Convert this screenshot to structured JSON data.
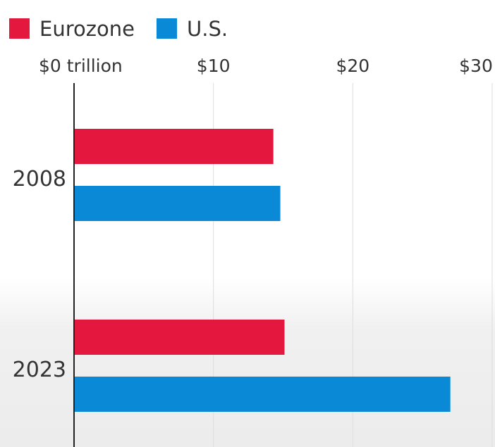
{
  "chart_data": {
    "type": "bar",
    "orientation": "horizontal",
    "categories": [
      "2008",
      "2023"
    ],
    "series": [
      {
        "name": "Eurozone",
        "color": "#e4173e",
        "values": [
          14.3,
          15.1
        ]
      },
      {
        "name": "U.S.",
        "color": "#0a8ad6",
        "values": [
          14.8,
          27.0
        ]
      }
    ],
    "xlim": [
      0,
      30
    ],
    "x_ticks": [
      {
        "value": 0,
        "label": "$0 trillion"
      },
      {
        "value": 10,
        "label": "$10"
      },
      {
        "value": 20,
        "label": "$20"
      },
      {
        "value": 30,
        "label": "$30"
      }
    ],
    "legend": [
      "Eurozone",
      "U.S."
    ],
    "legend_position": "top-left",
    "grid": true
  }
}
